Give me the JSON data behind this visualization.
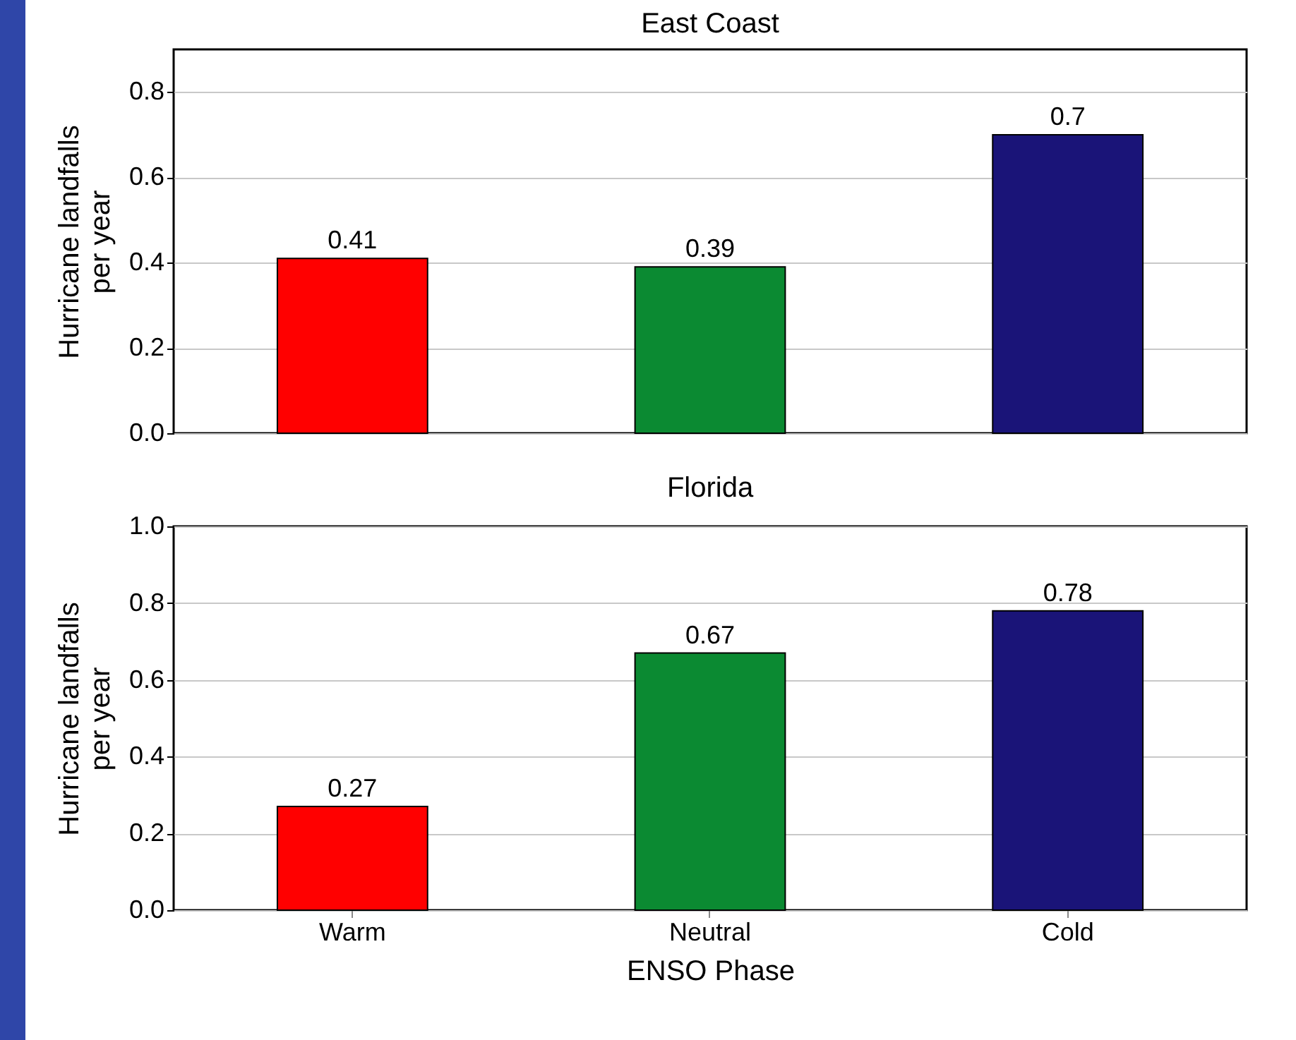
{
  "chart_data": [
    {
      "type": "bar",
      "title": "East Coast",
      "ylabel": "Hurricane landfalls per year",
      "categories": [
        null,
        null,
        null
      ],
      "values": [
        0.41,
        0.39,
        0.7
      ],
      "colors": [
        "#ff0000",
        "#0b8a32",
        "#1a1478"
      ],
      "ylim": [
        0,
        0.9
      ],
      "yticks": [
        {
          "value": 0,
          "label": "0.0"
        },
        {
          "value": 0.2,
          "label": "0.2"
        },
        {
          "value": 0.4,
          "label": "0.4"
        },
        {
          "value": 0.6,
          "label": "0.6"
        },
        {
          "value": 0.8,
          "label": "0.8"
        }
      ],
      "grid": "y",
      "data_labels": true,
      "tick_labels": "y"
    },
    {
      "type": "bar",
      "title": "Florida",
      "xlabel": "ENSO Phase",
      "ylabel": "Hurricane landfalls per year",
      "categories": [
        "Warm",
        "Neutral",
        "Cold"
      ],
      "values": [
        0.27,
        0.67,
        0.78
      ],
      "colors": [
        "#ff0000",
        "#0b8a32",
        "#1a1478"
      ],
      "ylim": [
        0,
        1.0
      ],
      "yticks": [
        {
          "value": 0,
          "label": "0.0"
        },
        {
          "value": 0.2,
          "label": "0.2"
        },
        {
          "value": 0.4,
          "label": "0.4"
        },
        {
          "value": 0.6,
          "label": "0.6"
        },
        {
          "value": 0.8,
          "label": "0.8"
        },
        {
          "value": 1.0,
          "label": "1.0"
        }
      ],
      "grid": "y",
      "data_labels": true
    }
  ]
}
